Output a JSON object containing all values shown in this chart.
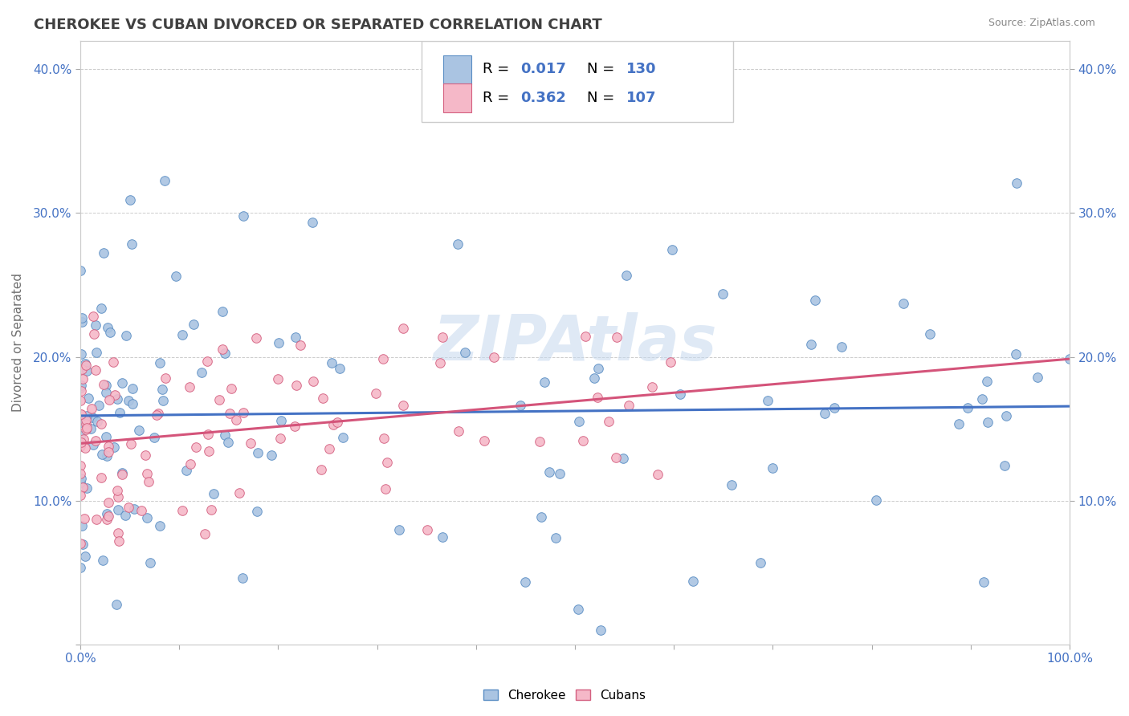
{
  "title": "CHEROKEE VS CUBAN DIVORCED OR SEPARATED CORRELATION CHART",
  "source": "Source: ZipAtlas.com",
  "ylabel": "Divorced or Separated",
  "xlim": [
    0.0,
    1.0
  ],
  "ylim": [
    0.0,
    0.42
  ],
  "cherokee_R": 0.017,
  "cherokee_N": 130,
  "cuban_R": 0.362,
  "cuban_N": 107,
  "cherokee_color": "#aac4e2",
  "cherokee_edge_color": "#5b8ec4",
  "cherokee_line_color": "#4472c4",
  "cuban_color": "#f5b8c8",
  "cuban_edge_color": "#d46080",
  "cuban_line_color": "#d4547a",
  "background_color": "#ffffff",
  "grid_color": "#cccccc",
  "watermark": "ZIPAtlas",
  "title_color": "#404040",
  "title_fontsize": 13,
  "tick_color": "#4472c4",
  "legend_R_color": "#4472c4",
  "legend_N_color": "#4472c4"
}
